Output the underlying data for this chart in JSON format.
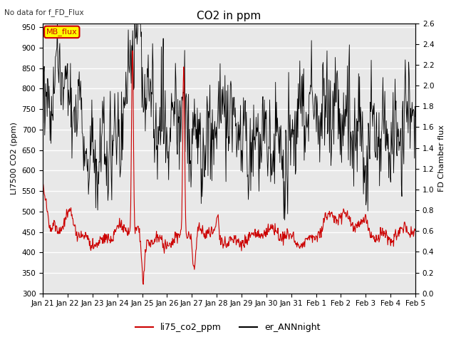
{
  "title": "CO2 in ppm",
  "top_left_note": "No data for f_FD_Flux",
  "ylabel_left": "LI7500 CO2 (ppm)",
  "ylabel_right": "FD Chamber flux",
  "ylim_left": [
    300,
    960
  ],
  "ylim_right": [
    0.0,
    2.6
  ],
  "yticks_left": [
    300,
    350,
    400,
    450,
    500,
    550,
    600,
    650,
    700,
    750,
    800,
    850,
    900,
    950
  ],
  "yticks_right": [
    0.0,
    0.2,
    0.4,
    0.6,
    0.8,
    1.0,
    1.2,
    1.4,
    1.6,
    1.8,
    2.0,
    2.2,
    2.4,
    2.6
  ],
  "xtick_labels": [
    "Jan 21",
    "Jan 22",
    "Jan 23",
    "Jan 24",
    "Jan 25",
    "Jan 26",
    "Jan 27",
    "Jan 28",
    "Jan 29",
    "Jan 30",
    "Jan 31",
    "Feb 1",
    "Feb 2",
    "Feb 3",
    "Feb 4",
    "Feb 5"
  ],
  "legend_entries": [
    "li75_co2_ppm",
    "er_ANNnight"
  ],
  "legend_colors": [
    "#cc0000",
    "#000000"
  ],
  "mb_flux_box_color": "#ffff00",
  "mb_flux_text_color": "#cc0000",
  "mb_flux_border_color": "#cc0000",
  "background_color": "#e8e8e8",
  "grid_color": "#ffffff",
  "line_color_red": "#cc0000",
  "line_color_black": "#000000",
  "title_fontsize": 11,
  "axis_label_fontsize": 8,
  "tick_fontsize": 7.5
}
